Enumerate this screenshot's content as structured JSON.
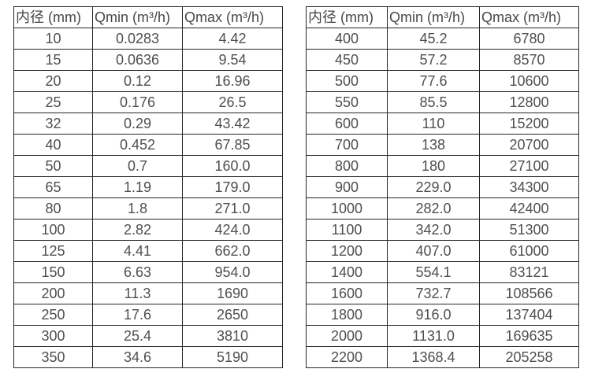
{
  "page": {
    "background_color": "#ffffff",
    "border_color": "#262626",
    "text_color": "#4f4f4f"
  },
  "chart_data": [
    {
      "type": "table",
      "title": "",
      "columns": [
        "内径 (mm)",
        "Qmin (m³/h)",
        "Qmax (m³/h)"
      ],
      "rows": [
        [
          "10",
          "0.0283",
          "4.42"
        ],
        [
          "15",
          "0.0636",
          "9.54"
        ],
        [
          "20",
          "0.12",
          "16.96"
        ],
        [
          "25",
          "0.176",
          "26.5"
        ],
        [
          "32",
          "0.29",
          "43.42"
        ],
        [
          "40",
          "0.452",
          "67.85"
        ],
        [
          "50",
          "0.7",
          "160.0"
        ],
        [
          "65",
          "1.19",
          "179.0"
        ],
        [
          "80",
          "1.8",
          "271.0"
        ],
        [
          "100",
          "2.82",
          "424.0"
        ],
        [
          "125",
          "4.41",
          "662.0"
        ],
        [
          "150",
          "6.63",
          "954.0"
        ],
        [
          "200",
          "11.3",
          "1690"
        ],
        [
          "250",
          "17.6",
          "2650"
        ],
        [
          "300",
          "25.4",
          "3810"
        ],
        [
          "350",
          "34.6",
          "5190"
        ]
      ]
    },
    {
      "type": "table",
      "title": "",
      "columns": [
        "内径 (mm)",
        "Qmin (m³/h)",
        "Qmax (m³/h)"
      ],
      "rows": [
        [
          "400",
          "45.2",
          "6780"
        ],
        [
          "450",
          "57.2",
          "8570"
        ],
        [
          "500",
          "77.6",
          "10600"
        ],
        [
          "550",
          "85.5",
          "12800"
        ],
        [
          "600",
          "110",
          "15200"
        ],
        [
          "700",
          "138",
          "20700"
        ],
        [
          "800",
          "180",
          "27100"
        ],
        [
          "900",
          "229.0",
          "34300"
        ],
        [
          "1000",
          "282.0",
          "42400"
        ],
        [
          "1100",
          "342.0",
          "51300"
        ],
        [
          "1200",
          "407.0",
          "61000"
        ],
        [
          "1400",
          "554.1",
          "83121"
        ],
        [
          "1600",
          "732.7",
          "108566"
        ],
        [
          "1800",
          "916.0",
          "137404"
        ],
        [
          "2000",
          "1131.0",
          "169635"
        ],
        [
          "2200",
          "1368.4",
          "205258"
        ]
      ]
    }
  ]
}
